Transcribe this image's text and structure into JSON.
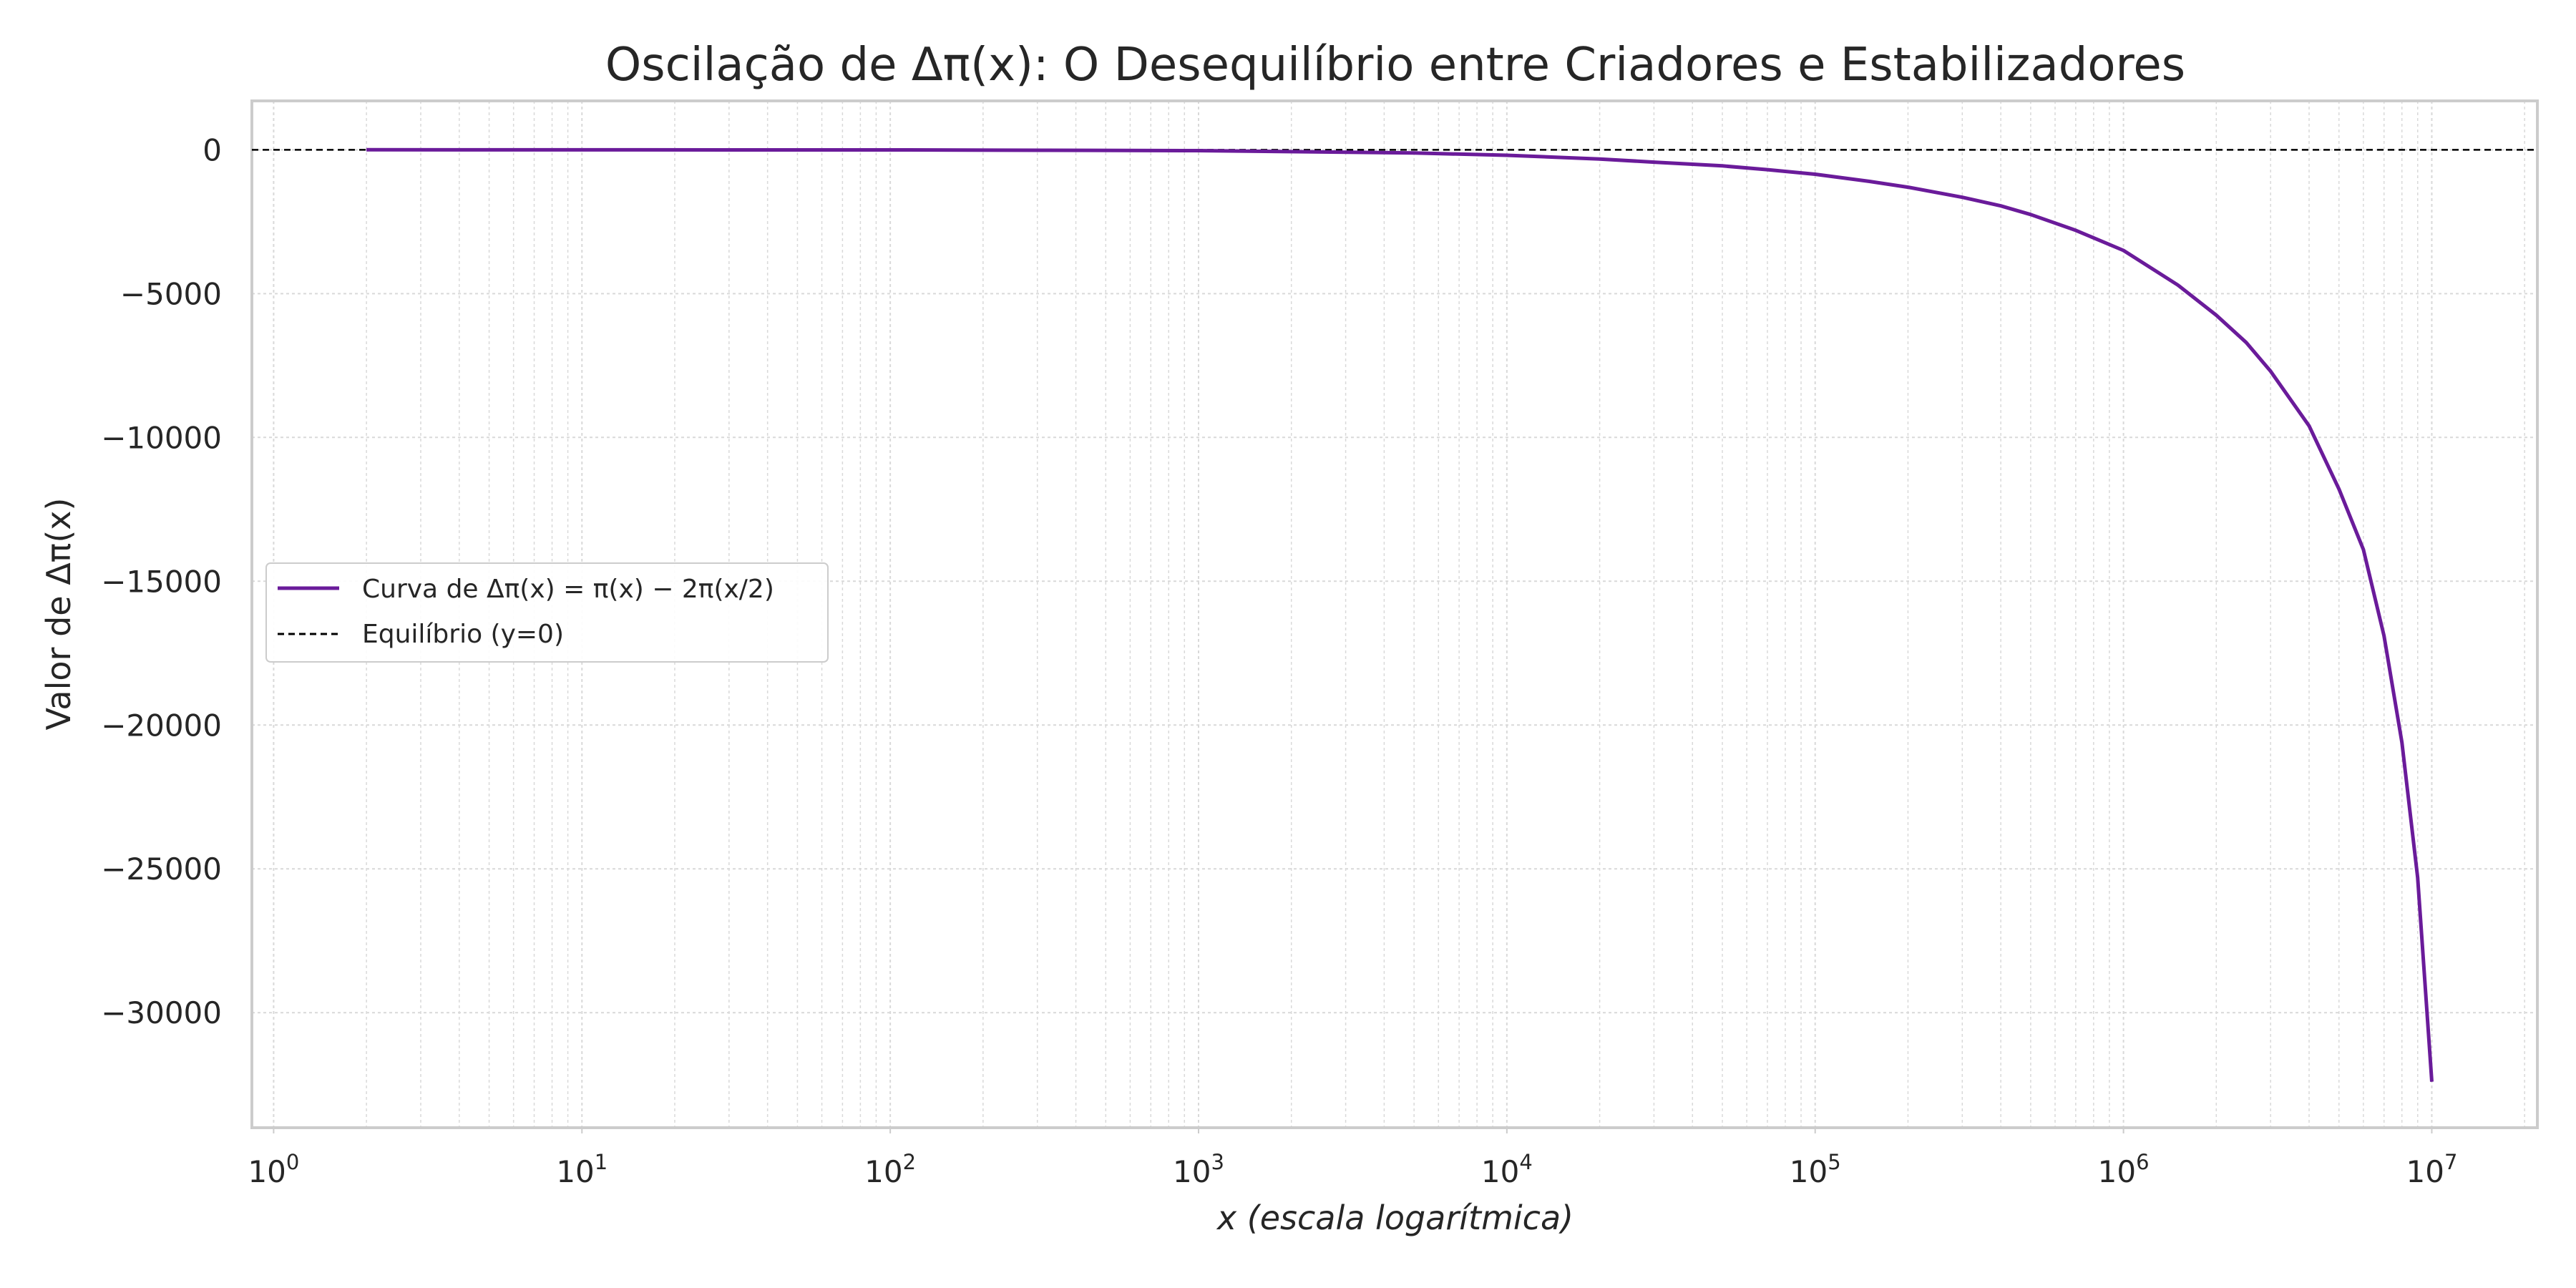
{
  "chart_data": {
    "type": "line",
    "title": "Oscilação de Δπ(x): O Desequilíbrio entre Criadores e Estabilizadores",
    "xlabel": "x (escala logarítmica)",
    "ylabel": "Valor de Δπ(x)",
    "xscale": "log",
    "xlim": [
      0.85,
      22000000
    ],
    "ylim": [
      -34000,
      1700
    ],
    "x_ticks": [
      {
        "value": 1,
        "exp": "0"
      },
      {
        "value": 10,
        "exp": "1"
      },
      {
        "value": 100,
        "exp": "2"
      },
      {
        "value": 1000,
        "exp": "3"
      },
      {
        "value": 10000,
        "exp": "4"
      },
      {
        "value": 100000,
        "exp": "5"
      },
      {
        "value": 1000000,
        "exp": "6"
      },
      {
        "value": 10000000,
        "exp": "7"
      }
    ],
    "y_ticks": [
      {
        "value": 0,
        "label": "0"
      },
      {
        "value": -5000,
        "label": "−5000"
      },
      {
        "value": -10000,
        "label": "−10000"
      },
      {
        "value": -15000,
        "label": "−15000"
      },
      {
        "value": -20000,
        "label": "−20000"
      },
      {
        "value": -25000,
        "label": "−25000"
      },
      {
        "value": -30000,
        "label": "−30000"
      }
    ],
    "grid": true,
    "legend_position": "center-left",
    "series": [
      {
        "name": "Curva de Δπ(x) = π(x) − 2π(x/2)",
        "color": "#6a1b9a",
        "style": "solid",
        "x": [
          2,
          10,
          100,
          1000,
          5000,
          10000,
          20000,
          30000,
          50000,
          70000,
          100000,
          150000,
          200000,
          300000,
          400000,
          500000,
          700000,
          1000000,
          1500000,
          2000000,
          2500000,
          3000000,
          4000000,
          5000000,
          6000000,
          7000000,
          8000000,
          9000000,
          10000000
        ],
        "y": [
          0,
          -1,
          -5,
          -30,
          -110,
          -190,
          -320,
          -430,
          -560,
          -690,
          -850,
          -1100,
          -1300,
          -1650,
          -1950,
          -2250,
          -2800,
          -3500,
          -4700,
          -5750,
          -6700,
          -7700,
          -9600,
          -11800,
          -13900,
          -16900,
          -20600,
          -25300,
          -32400
        ]
      },
      {
        "name": "Equilíbrio (y=0)",
        "color": "#000000",
        "style": "dashed",
        "y_constant": 0
      }
    ]
  }
}
